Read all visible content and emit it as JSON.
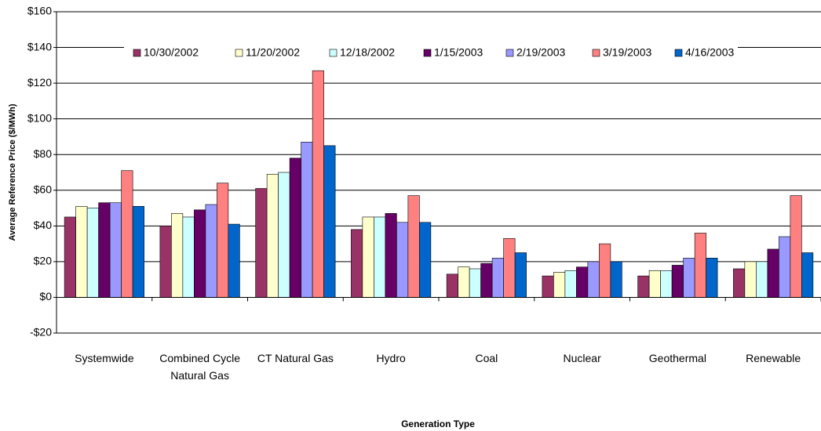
{
  "chart_data": {
    "type": "bar",
    "y_label": "Average Reference Price ($/MWh)",
    "x_label": "Generation Type",
    "categories": [
      "Systemwide",
      "Combined Cycle Natural Gas",
      "CT Natural Gas",
      "Hydro",
      "Coal",
      "Nuclear",
      "Geothermal",
      "Renewable"
    ],
    "series": [
      {
        "name": "10/30/2002",
        "color": "#993366",
        "values": [
          45,
          40,
          61,
          38,
          13,
          12,
          12,
          16
        ]
      },
      {
        "name": "11/20/2002",
        "color": "#ffffcc",
        "values": [
          51,
          47,
          69,
          45,
          17,
          14,
          15,
          20
        ]
      },
      {
        "name": "12/18/2002",
        "color": "#ccffff",
        "values": [
          50,
          45,
          70,
          45,
          16,
          15,
          15,
          20
        ]
      },
      {
        "name": "1/15/2003",
        "color": "#660066",
        "values": [
          53,
          49,
          78,
          47,
          19,
          17,
          18,
          27
        ]
      },
      {
        "name": "2/19/2003",
        "color": "#9999ff",
        "values": [
          53,
          52,
          87,
          42,
          22,
          20,
          22,
          34
        ]
      },
      {
        "name": "3/19/2003",
        "color": "#ff8080",
        "values": [
          71,
          64,
          127,
          57,
          33,
          30,
          36,
          57
        ]
      },
      {
        "name": "4/16/2003",
        "color": "#0066cc",
        "values": [
          51,
          41,
          85,
          42,
          25,
          20,
          22,
          25
        ]
      }
    ],
    "ylim": [
      -20,
      160
    ],
    "yticks": [
      {
        "value": -20,
        "label": "-$20"
      },
      {
        "value": 0,
        "label": "$0"
      },
      {
        "value": 20,
        "label": "$20"
      },
      {
        "value": 40,
        "label": "$40"
      },
      {
        "value": 60,
        "label": "$60"
      },
      {
        "value": 80,
        "label": "$80"
      },
      {
        "value": 100,
        "label": "$100"
      },
      {
        "value": 120,
        "label": "$120"
      },
      {
        "value": 140,
        "label": "$140"
      },
      {
        "value": 160,
        "label": "$160"
      }
    ],
    "grid": true,
    "legend": "top"
  }
}
